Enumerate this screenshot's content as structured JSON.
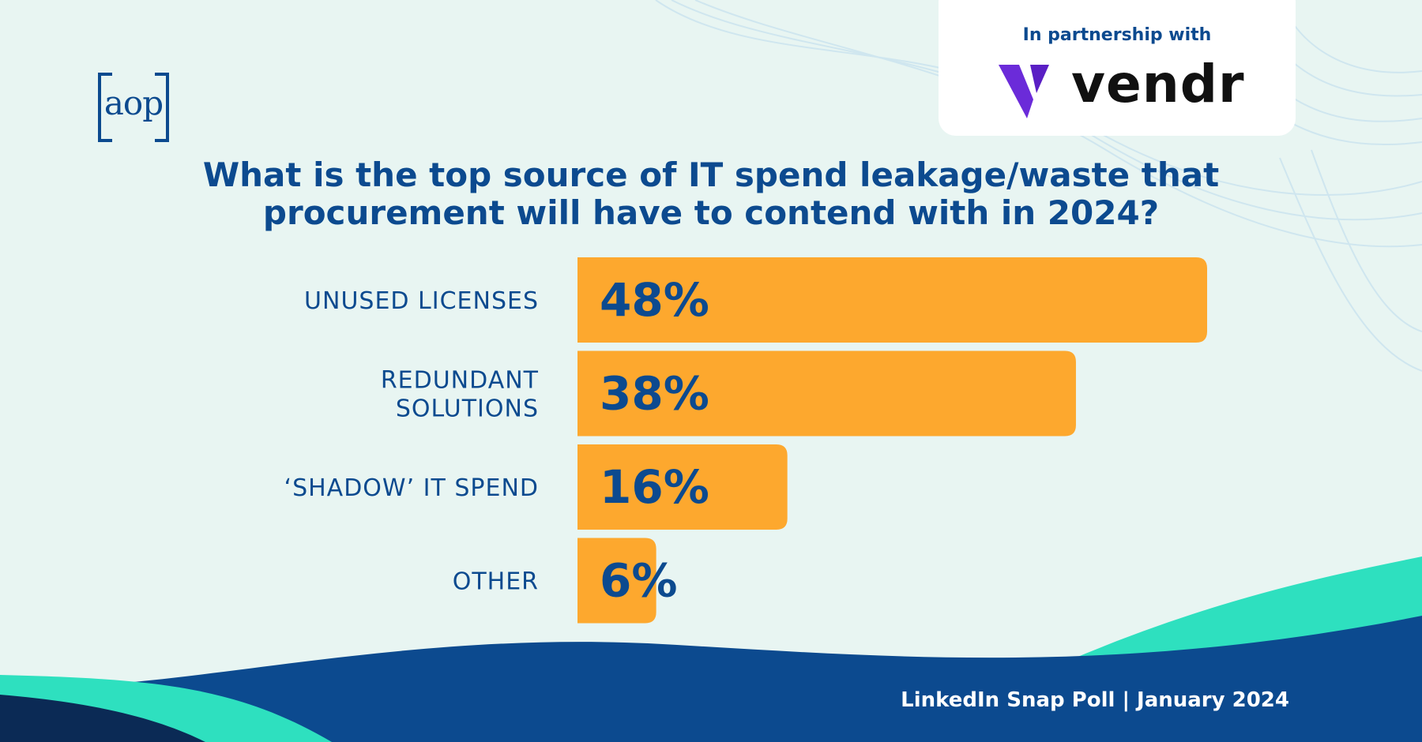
{
  "brand": {
    "logo_text": "aop",
    "partner_label": "In partnership with",
    "partner_name": "vendr"
  },
  "footer": "LinkedIn Snap Poll |  January 2024",
  "colors": {
    "background": "#e8f5f2",
    "bar": "#fda82e",
    "navy": "#0c4a8f",
    "teal": "#2ee0bf",
    "purple": "#6b2bd9"
  },
  "chart_data": {
    "type": "bar",
    "orientation": "horizontal",
    "title": [
      "What is the top source of IT spend leakage/waste that",
      "procurement will have to contend with in 2024?"
    ],
    "categories": [
      [
        "UNUSED LICENSES"
      ],
      [
        "REDUNDANT",
        "SOLUTIONS"
      ],
      [
        "‘SHADOW’ IT SPEND"
      ],
      [
        "OTHER"
      ]
    ],
    "values": [
      48,
      38,
      16,
      6
    ],
    "value_labels": [
      "48%",
      "38%",
      "16%",
      "6%"
    ],
    "xlim": [
      0,
      48
    ],
    "grid": false,
    "legend": "none"
  }
}
